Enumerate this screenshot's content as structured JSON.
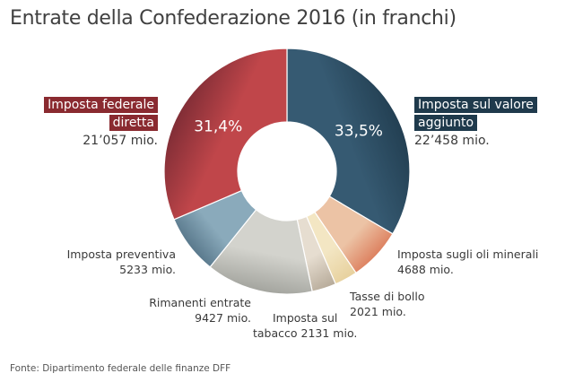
{
  "title": "Entrate della Confederazione 2016 (in franchi)",
  "source": "Fonte: Dipartimento federale delle finanze DFF",
  "chart_data": {
    "type": "pie",
    "unit": "mio.",
    "slices": [
      {
        "label": "Imposta sul valore aggiunto",
        "value": 22458,
        "value_text": "22’458 mio.",
        "percent_text": "33,5%",
        "color_start": "#1f3a4c",
        "color_end": "#365a72"
      },
      {
        "label": "Imposta sugli oli minerali",
        "value": 4688,
        "value_text": "4688 mio.",
        "color_start": "#d9704e",
        "color_end": "#ecc3a5"
      },
      {
        "label": "Tasse di bollo",
        "value": 2021,
        "value_text": "2021 mio.",
        "color_start": "#e8d2a0",
        "color_end": "#f3e6c3"
      },
      {
        "label": "Imposta sul tabacco",
        "value": 2131,
        "value_text": "2131 mio.",
        "color_start": "#b9ad9c",
        "color_end": "#e6ddd0"
      },
      {
        "label": "Rimanenti entrate",
        "value": 9427,
        "value_text": "9427 mio.",
        "color_start": "#9fa09a",
        "color_end": "#d3d3cd"
      },
      {
        "label": "Imposta preventiva",
        "value": 5233,
        "value_text": "5233 mio.",
        "color_start": "#4b6a7e",
        "color_end": "#8aaabb"
      },
      {
        "label": "Imposta federale diretta",
        "value": 21057,
        "value_text": "21’057 mio.",
        "percent_text": "31,4%",
        "color_start": "#6e2630",
        "color_end": "#c0464a"
      }
    ]
  },
  "labels": {
    "iva_line1": "Imposta sul valore",
    "iva_line2": "aggiunto",
    "ifd_line1": "Imposta federale",
    "ifd_line2": "diretta",
    "oli_line1": "Imposta sugli oli minerali",
    "bollo_line1": "Tasse di bollo",
    "tabacco_line1": "Imposta sul",
    "tabacco_line2": "tabacco 2131 mio.",
    "rimanenti_line1": "Rimanenti entrate",
    "preventiva_line1": "Imposta preventiva"
  }
}
